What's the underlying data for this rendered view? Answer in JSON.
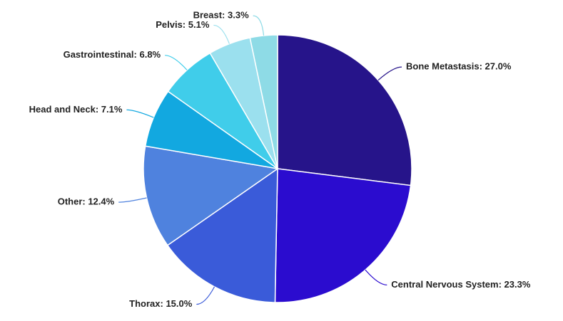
{
  "chart_data": {
    "type": "pie",
    "values": [
      27.0,
      23.3,
      15.0,
      12.4,
      7.1,
      6.8,
      5.1,
      3.3
    ],
    "value_labels": [
      "Bone Metastasis: 27.0%",
      "Central Nervous System: 23.3%",
      "Thorax: 15.0%",
      "Other: 12.4%",
      "Head and Neck: 7.1%",
      "Gastrointestinal: 6.8%",
      "Pelvis: 5.1%",
      "Breast: 3.3%"
    ],
    "colors": [
      "#26148a",
      "#2b0ccf",
      "#3a5bd9",
      "#4f82de",
      "#12a8e0",
      "#40cdea",
      "#9be0ee",
      "#8edbe6"
    ]
  }
}
